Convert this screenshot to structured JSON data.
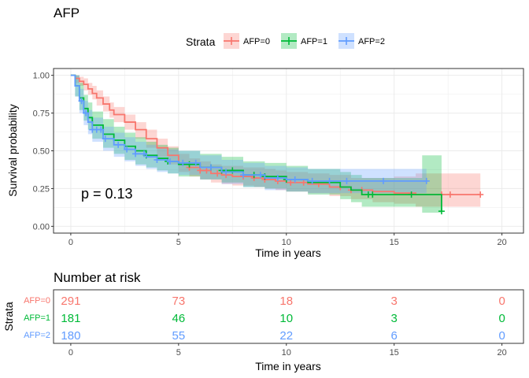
{
  "chart_data": [
    {
      "type": "line",
      "subtype": "kaplan-meier",
      "title": "AFP",
      "xlabel": "Time in years",
      "ylabel": "Survival probability",
      "xlim": [
        -0.8,
        21.0
      ],
      "ylim": [
        -0.045,
        1.045
      ],
      "xticks": [
        0,
        5,
        10,
        15,
        20
      ],
      "yticks": [
        0.0,
        0.25,
        0.5,
        0.75,
        1.0
      ],
      "ytick_labels": [
        "0.00",
        "0.25",
        "0.50",
        "0.75",
        "1.00"
      ],
      "grid": true,
      "legend_title": "Strata",
      "legend_position": "top",
      "annotation": "p = 0.13",
      "series": [
        {
          "name": "AFP=0",
          "color": "#F8766D",
          "x": [
            0,
            0.2,
            0.4,
            0.6,
            0.8,
            1.0,
            1.2,
            1.5,
            1.8,
            2.0,
            2.5,
            3.0,
            3.5,
            4.0,
            4.5,
            5.0,
            5.5,
            6.0,
            6.5,
            7.0,
            7.5,
            8.0,
            8.5,
            9.0,
            9.5,
            10.0,
            11.0,
            12.0,
            13.0,
            14.0,
            15.0,
            16.0,
            17.0,
            18.0,
            19.0
          ],
          "y": [
            1.0,
            0.98,
            0.96,
            0.94,
            0.91,
            0.88,
            0.85,
            0.81,
            0.77,
            0.74,
            0.69,
            0.64,
            0.58,
            0.52,
            0.47,
            0.42,
            0.39,
            0.37,
            0.35,
            0.34,
            0.33,
            0.33,
            0.32,
            0.31,
            0.3,
            0.29,
            0.28,
            0.26,
            0.24,
            0.23,
            0.22,
            0.21,
            0.21,
            0.21,
            0.21
          ],
          "upper": [
            1.0,
            1.0,
            0.99,
            0.98,
            0.95,
            0.93,
            0.9,
            0.86,
            0.82,
            0.79,
            0.74,
            0.69,
            0.64,
            0.58,
            0.53,
            0.48,
            0.45,
            0.43,
            0.41,
            0.4,
            0.4,
            0.39,
            0.39,
            0.38,
            0.37,
            0.36,
            0.35,
            0.34,
            0.32,
            0.32,
            0.33,
            0.35,
            0.35,
            0.35,
            0.35
          ],
          "lower": [
            1.0,
            0.95,
            0.93,
            0.9,
            0.87,
            0.84,
            0.8,
            0.76,
            0.72,
            0.69,
            0.64,
            0.58,
            0.52,
            0.46,
            0.41,
            0.36,
            0.33,
            0.31,
            0.29,
            0.28,
            0.27,
            0.27,
            0.26,
            0.25,
            0.24,
            0.23,
            0.22,
            0.2,
            0.18,
            0.16,
            0.15,
            0.13,
            0.13,
            0.13,
            0.13
          ],
          "censor_x": [
            5.5,
            6.0,
            6.3,
            6.8,
            7.2,
            8.0,
            8.5,
            9.0,
            9.6,
            10.2,
            10.8,
            11.5,
            12.5,
            13.0,
            13.5,
            17.2,
            17.6,
            19.0
          ]
        },
        {
          "name": "AFP=1",
          "color": "#00BA38",
          "x": [
            0,
            0.2,
            0.4,
            0.6,
            0.8,
            1.0,
            1.5,
            2.0,
            2.5,
            3.0,
            3.5,
            4.0,
            4.5,
            5.0,
            6.0,
            7.0,
            8.0,
            9.0,
            10.0,
            11.0,
            12.5,
            13.0,
            13.5,
            16.3,
            17.2
          ],
          "y": [
            1.0,
            0.93,
            0.85,
            0.78,
            0.72,
            0.67,
            0.61,
            0.57,
            0.53,
            0.5,
            0.47,
            0.45,
            0.43,
            0.41,
            0.39,
            0.37,
            0.34,
            0.33,
            0.31,
            0.29,
            0.26,
            0.24,
            0.21,
            0.21,
            0.1
          ],
          "upper": [
            1.0,
            1.0,
            0.95,
            0.87,
            0.82,
            0.76,
            0.71,
            0.66,
            0.62,
            0.59,
            0.56,
            0.54,
            0.52,
            0.5,
            0.48,
            0.46,
            0.43,
            0.42,
            0.4,
            0.38,
            0.36,
            0.34,
            0.32,
            0.47,
            0.47
          ],
          "lower": [
            1.0,
            0.86,
            0.77,
            0.7,
            0.64,
            0.58,
            0.52,
            0.48,
            0.44,
            0.41,
            0.39,
            0.37,
            0.35,
            0.33,
            0.31,
            0.29,
            0.26,
            0.25,
            0.23,
            0.21,
            0.18,
            0.16,
            0.13,
            0.09,
            0.03
          ],
          "censor_x": [
            3.5,
            4.5,
            5.5,
            6.5,
            7.0,
            7.5,
            8.5,
            9.0,
            10.0,
            13.8,
            14.0,
            15.8,
            17.2
          ]
        },
        {
          "name": "AFP=2",
          "color": "#619CFF",
          "x": [
            0,
            0.2,
            0.4,
            0.6,
            0.8,
            1.0,
            1.5,
            2.0,
            2.5,
            3.0,
            3.5,
            4.0,
            4.5,
            5.0,
            6.0,
            7.0,
            8.0,
            9.0,
            10.0,
            11.0,
            12.0,
            14.0,
            16.5
          ],
          "y": [
            1.0,
            0.93,
            0.83,
            0.75,
            0.69,
            0.64,
            0.58,
            0.54,
            0.51,
            0.48,
            0.46,
            0.44,
            0.43,
            0.42,
            0.39,
            0.36,
            0.34,
            0.32,
            0.31,
            0.3,
            0.3,
            0.3,
            0.3
          ],
          "upper": [
            1.0,
            1.0,
            0.91,
            0.83,
            0.77,
            0.72,
            0.66,
            0.62,
            0.59,
            0.56,
            0.54,
            0.52,
            0.51,
            0.5,
            0.47,
            0.44,
            0.42,
            0.4,
            0.39,
            0.38,
            0.38,
            0.38,
            0.38
          ],
          "lower": [
            1.0,
            0.86,
            0.75,
            0.67,
            0.61,
            0.56,
            0.5,
            0.46,
            0.43,
            0.4,
            0.38,
            0.36,
            0.35,
            0.34,
            0.31,
            0.28,
            0.26,
            0.24,
            0.23,
            0.22,
            0.22,
            0.22,
            0.22
          ],
          "censor_x": [
            0.5,
            0.7,
            1.0,
            1.2,
            1.4,
            1.6,
            2.2,
            2.6,
            3.0,
            3.4,
            4.0,
            4.6,
            5.2,
            5.8,
            6.5,
            7.2,
            8.0,
            8.8,
            9.6,
            10.4,
            11.2,
            12.0,
            12.8,
            14.5,
            16.5
          ]
        }
      ]
    },
    {
      "type": "table",
      "title": "Number at risk",
      "xlabel": "Time in years",
      "ylabel": "Strata",
      "xlim": [
        -0.8,
        21.0
      ],
      "xticks": [
        0,
        5,
        10,
        15,
        20
      ],
      "times": [
        0,
        5,
        10,
        15,
        20
      ],
      "rows": [
        {
          "name": "AFP=0",
          "color": "#F8766D",
          "values": [
            291,
            73,
            18,
            3,
            0
          ]
        },
        {
          "name": "AFP=1",
          "color": "#00BA38",
          "values": [
            181,
            46,
            10,
            3,
            0
          ]
        },
        {
          "name": "AFP=2",
          "color": "#619CFF",
          "values": [
            180,
            55,
            22,
            6,
            0
          ]
        }
      ]
    }
  ]
}
